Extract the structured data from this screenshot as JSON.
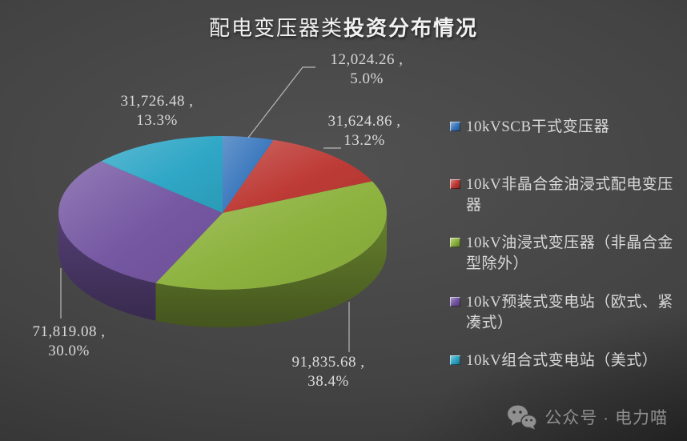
{
  "header": {
    "title_regular": "配电变压器类",
    "title_bold": "投资分布情况",
    "title_full": "配电变压器类投资分布情况"
  },
  "chart_data": {
    "type": "pie",
    "title": "配电变压器类投资分布情况",
    "effect": "3d",
    "legend_position": "right",
    "label_format": "value , percent",
    "background_color": "#3c3c3c",
    "text_color": "#D9D9D9",
    "start_angle_deg": -90,
    "direction": "clockwise",
    "slices": [
      {
        "label": "10kVSCB干式变压器",
        "value": 12024.26,
        "percent": 5.0,
        "value_label": "12,024.26 ,",
        "pct_label": "5.0%",
        "color": "#3B78BE"
      },
      {
        "label": "10kV非晶合金油浸式配电变压器",
        "value": 31624.86,
        "percent": 13.2,
        "value_label": "31,624.86 ,",
        "pct_label": "13.2%",
        "color": "#BE3B36"
      },
      {
        "label": "10kV油浸式变压器（非晶合金型除外）",
        "value": 91835.68,
        "percent": 38.4,
        "value_label": "91,835.68 ,",
        "pct_label": "38.4%",
        "color": "#8DB23E"
      },
      {
        "label": "10kV预装式变电站（欧式、紧凑式）",
        "value": 71819.08,
        "percent": 30.0,
        "value_label": "71,819.08 ,",
        "pct_label": "30.0%",
        "color": "#7557A2"
      },
      {
        "label": "10kV组合式变电站（美式）",
        "value": 31726.48,
        "percent": 13.3,
        "value_label": "31,726.48 ,",
        "pct_label": "13.3%",
        "color": "#2FA7C6"
      }
    ]
  },
  "footer": {
    "wechat_label": "公众号 · 电力喵",
    "icon": "wechat-icon"
  }
}
